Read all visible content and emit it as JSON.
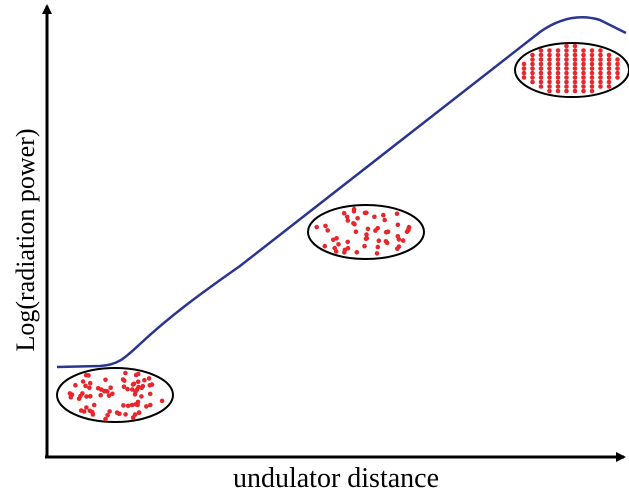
{
  "axes": {
    "x_label": "undulator distance",
    "y_label": "Log(radiation power)"
  }
}
